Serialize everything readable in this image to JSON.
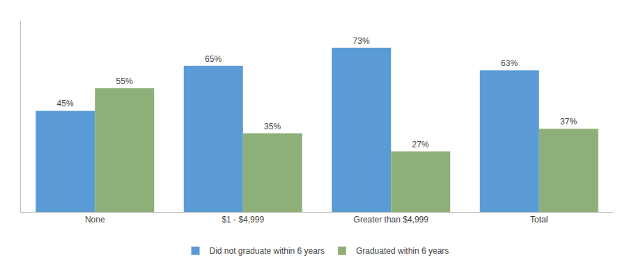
{
  "chart_data": {
    "type": "bar",
    "categories": [
      "None",
      "$1 - $4,999",
      "Greater than $4,999",
      "Total"
    ],
    "series": [
      {
        "name": "Did not graduate within 6 years",
        "color": "#5B9BD5",
        "values": [
          45,
          65,
          73,
          63
        ],
        "value_labels": [
          "45%",
          "65%",
          "73%",
          "63%"
        ]
      },
      {
        "name": "Graduated within 6 years",
        "color": "#8FAF78",
        "values": [
          55,
          35,
          27,
          37
        ],
        "value_labels": [
          "55%",
          "35%",
          "27%",
          "37%"
        ]
      }
    ],
    "ylim": [
      0,
      85
    ],
    "grid": false,
    "legend": "bottom",
    "data_labels": true,
    "tick_labels": "x"
  }
}
